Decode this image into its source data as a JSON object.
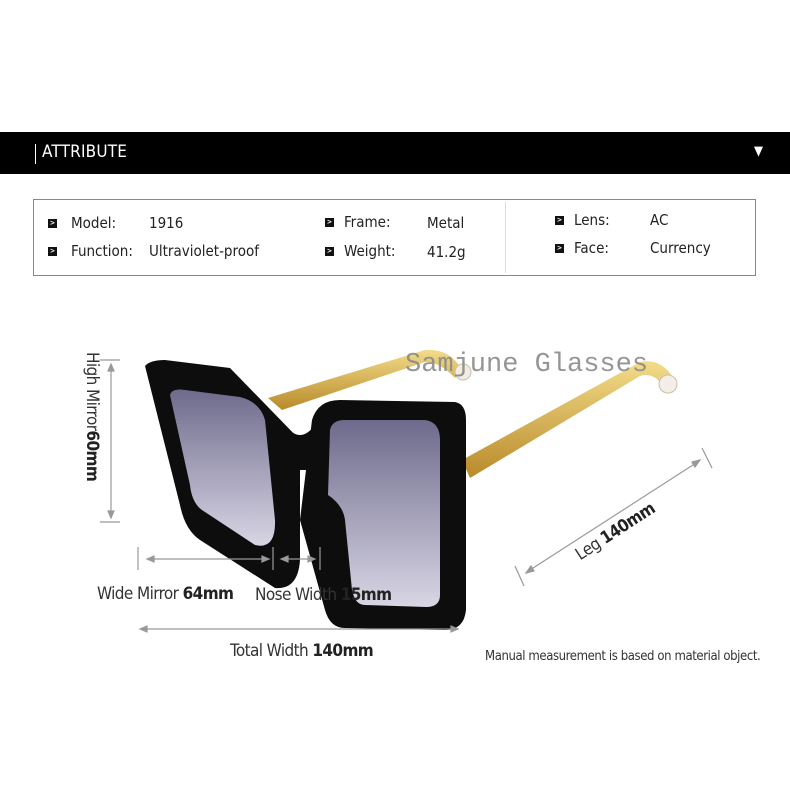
{
  "header": {
    "title": "ATTRIBUTE",
    "toggle_icon": "triangle-down-icon"
  },
  "attributes": [
    {
      "label": "Model:",
      "value": "1916"
    },
    {
      "label": "Function:",
      "value": "Ultraviolet-proof"
    },
    {
      "label": "Frame:",
      "value": "Metal"
    },
    {
      "label": "Weight:",
      "value": "41.2g"
    },
    {
      "label": "Lens:",
      "value": "AC"
    },
    {
      "label": "Face:",
      "value": "Currency"
    }
  ],
  "watermark": "Samjune Glasses",
  "measurements": {
    "high_mirror": {
      "label": "High Mirror",
      "value": "60mm"
    },
    "wide_mirror": {
      "label": "Wide Mirror",
      "value": "64mm"
    },
    "nose_width": {
      "label": "Nose Width",
      "value": "15mm"
    },
    "total_width": {
      "label": "Total Width",
      "value": "140mm"
    },
    "leg": {
      "label": "Leg",
      "value": "140mm"
    }
  },
  "note": "Manual measurement is based on material object.",
  "colors": {
    "header_bg": "#000000",
    "frame": "#0d0d0d",
    "temple": "#d9b24a",
    "lens": "#7f7a9c"
  }
}
